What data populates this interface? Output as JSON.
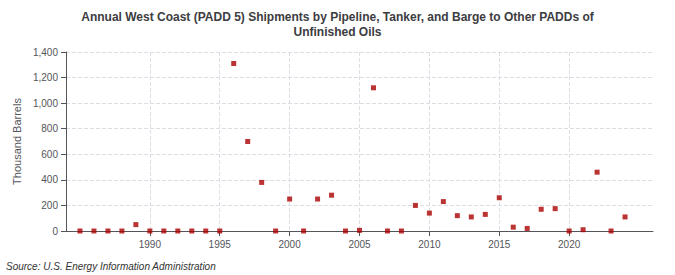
{
  "chart_data": {
    "type": "scatter",
    "title": "Annual West Coast (PADD 5) Shipments by Pipeline, Tanker, and Barge to Other PADDs of\nUnfinished Oils",
    "ylabel": "Thousand Barrels",
    "annotations": [
      "Source: U.S. Energy Information Administration"
    ],
    "x": [
      1985,
      1986,
      1987,
      1988,
      1989,
      1990,
      1991,
      1992,
      1993,
      1994,
      1995,
      1996,
      1997,
      1998,
      1999,
      2000,
      2001,
      2002,
      2003,
      2004,
      2005,
      2006,
      2007,
      2008,
      2009,
      2010,
      2011,
      2012,
      2013,
      2014,
      2015,
      2016,
      2017,
      2018,
      2019,
      2020,
      2021,
      2022,
      2023,
      2024
    ],
    "values": [
      0,
      0,
      0,
      0,
      50,
      0,
      0,
      0,
      0,
      0,
      0,
      1310,
      700,
      380,
      0,
      250,
      0,
      250,
      280,
      0,
      5,
      1120,
      0,
      0,
      200,
      140,
      230,
      120,
      110,
      130,
      260,
      30,
      20,
      170,
      175,
      0,
      10,
      460,
      0,
      110
    ],
    "color": "#aa0000",
    "marker": "square",
    "xlim": [
      1984,
      2026
    ],
    "xticks": [
      1990,
      1995,
      2000,
      2005,
      2010,
      2015,
      2020
    ],
    "ylim": [
      0,
      1400
    ],
    "yticks": [
      0,
      200,
      400,
      600,
      800,
      {
        "value": 1000,
        "label": "1,000"
      },
      {
        "value": 1200,
        "label": "1,200"
      },
      {
        "value": 1400,
        "label": "1,400"
      }
    ],
    "grid": true
  }
}
